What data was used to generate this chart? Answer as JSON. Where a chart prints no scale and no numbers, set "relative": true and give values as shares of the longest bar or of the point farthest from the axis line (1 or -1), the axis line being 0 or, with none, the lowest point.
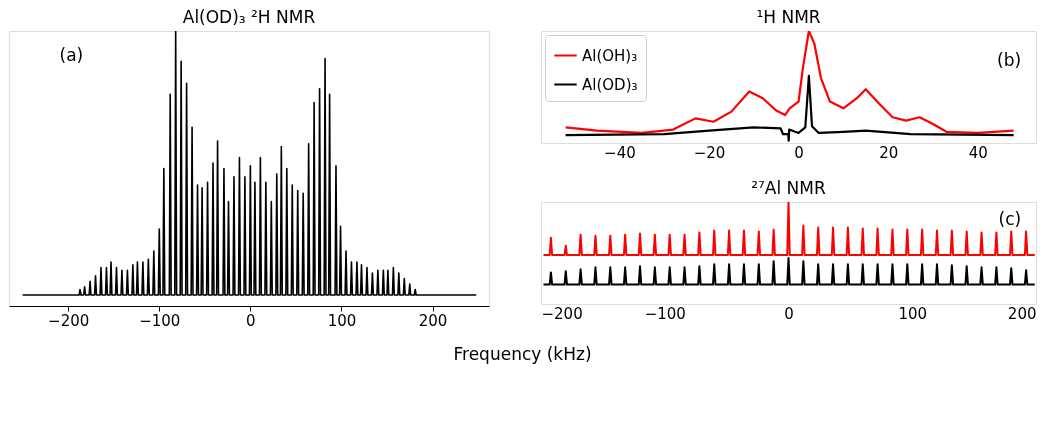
{
  "chart_data": [
    {
      "type": "line",
      "title": "Al(OD)₃ ²H NMR",
      "xlabel": "Frequency (kHz)",
      "relative": true,
      "tick_labels": "x",
      "grid": false,
      "xlim": [
        -265,
        262
      ],
      "xticks": [
        -200,
        -100,
        0,
        100,
        200
      ],
      "annotations": [
        "(a)"
      ],
      "series": [
        {
          "color": "#000000",
          "x": [
            -250,
            -188,
            -187,
            -186,
            -183,
            -182,
            -181,
            -177,
            -176,
            -175,
            -171,
            -170,
            -169,
            -165,
            -164,
            -163,
            -159,
            -158,
            -157,
            -154,
            -153,
            -152,
            -148,
            -147,
            -146,
            -142,
            -141,
            -140,
            -136,
            -135,
            -134,
            -130,
            -129,
            -128,
            -125,
            -124,
            -123,
            -119,
            -118,
            -117,
            -113,
            -112,
            -111,
            -107,
            -106,
            -105,
            -101,
            -100,
            -99,
            -96,
            -95,
            -94,
            -89,
            -88,
            -87,
            -83,
            -82,
            -81,
            -77,
            -76,
            -75,
            -71,
            -70,
            -69,
            -65,
            -64,
            -63,
            -59,
            -58,
            -57,
            -54,
            -53,
            -52,
            -48,
            -47,
            -46,
            -42,
            -41,
            -40,
            -37,
            -36,
            -35,
            -30,
            -29,
            -28,
            -25,
            -24,
            -23,
            -19,
            -18,
            -17,
            -13,
            -12,
            -11,
            -7,
            -6,
            -5,
            -1,
            0,
            1,
            4,
            5,
            6,
            10,
            11,
            12,
            16,
            17,
            18,
            22,
            23,
            24,
            28,
            29,
            30,
            33,
            34,
            35,
            39,
            40,
            41,
            45,
            46,
            47,
            51,
            52,
            53,
            57,
            58,
            59,
            63,
            64,
            65,
            69,
            70,
            71,
            75,
            76,
            77,
            81,
            82,
            83,
            86,
            87,
            88,
            93,
            94,
            95,
            98,
            99,
            100,
            104,
            105,
            106,
            110,
            111,
            112,
            116,
            117,
            118,
            121,
            122,
            123,
            127,
            128,
            129,
            133,
            134,
            135,
            139,
            140,
            141,
            145,
            146,
            147,
            150,
            151,
            152,
            156,
            157,
            158,
            162,
            163,
            164,
            168,
            169,
            170,
            174,
            175,
            176,
            180,
            181,
            182,
            248
          ],
          "values": [
            0.04,
            0.04,
            0.06,
            0.04,
            0.04,
            0.07,
            0.04,
            0.04,
            0.09,
            0.04,
            0.04,
            0.11,
            0.04,
            0.04,
            0.14,
            0.04,
            0.04,
            0.14,
            0.04,
            0.04,
            0.16,
            0.04,
            0.04,
            0.14,
            0.04,
            0.04,
            0.13,
            0.04,
            0.04,
            0.13,
            0.04,
            0.04,
            0.15,
            0.04,
            0.04,
            0.16,
            0.04,
            0.04,
            0.16,
            0.04,
            0.04,
            0.17,
            0.04,
            0.04,
            0.2,
            0.04,
            0.04,
            0.28,
            0.04,
            0.04,
            0.5,
            0.04,
            0.04,
            0.77,
            0.04,
            0.04,
            1,
            0.04,
            0.04,
            0.89,
            0.04,
            0.04,
            0.81,
            0.04,
            0.04,
            0.65,
            0.04,
            0.04,
            0.44,
            0.04,
            0.04,
            0.43,
            0.04,
            0.04,
            0.45,
            0.04,
            0.04,
            0.52,
            0.04,
            0.04,
            0.6,
            0.04,
            0.04,
            0.5,
            0.04,
            0.04,
            0.38,
            0.04,
            0.04,
            0.47,
            0.04,
            0.04,
            0.54,
            0.04,
            0.04,
            0.47,
            0.04,
            0.04,
            0.51,
            0.04,
            0.04,
            0.45,
            0.04,
            0.04,
            0.54,
            0.04,
            0.04,
            0.45,
            0.04,
            0.04,
            0.38,
            0.04,
            0.04,
            0.48,
            0.04,
            0.04,
            0.58,
            0.04,
            0.04,
            0.5,
            0.04,
            0.04,
            0.44,
            0.04,
            0.04,
            0.42,
            0.04,
            0.04,
            0.41,
            0.04,
            0.04,
            0.59,
            0.04,
            0.04,
            0.74,
            0.04,
            0.04,
            0.79,
            0.04,
            0.04,
            0.9,
            0.04,
            0.04,
            0.77,
            0.04,
            0.04,
            0.51,
            0.04,
            0.04,
            0.29,
            0.04,
            0.04,
            0.2,
            0.04,
            0.04,
            0.16,
            0.04,
            0.04,
            0.16,
            0.04,
            0.04,
            0.15,
            0.04,
            0.04,
            0.14,
            0.04,
            0.04,
            0.12,
            0.04,
            0.04,
            0.13,
            0.04,
            0.04,
            0.13,
            0.04,
            0.04,
            0.13,
            0.04,
            0.04,
            0.14,
            0.04,
            0.04,
            0.12,
            0.04,
            0.04,
            0.1,
            0.04,
            0.04,
            0.08,
            0.04,
            0.04,
            0.06,
            0.04,
            0.04
          ]
        }
      ]
    },
    {
      "type": "line",
      "title": "¹H NMR",
      "relative": true,
      "tick_labels": "x",
      "grid": false,
      "legend": "top left",
      "xlim": [
        -57.5,
        53
      ],
      "xticks": [
        -40,
        -20,
        0,
        20,
        40
      ],
      "annotations": [
        "(b)"
      ],
      "series": [
        {
          "name": "Al(OH)₃",
          "color": "#ff0000",
          "x": [
            -52,
            -45,
            -35,
            -28,
            -23,
            -19,
            -15,
            -11,
            -8,
            -5,
            -3,
            -2,
            0,
            1,
            2.3,
            3.5,
            5,
            7,
            10,
            13,
            15,
            18,
            21,
            24,
            27,
            30,
            33,
            40,
            48
          ],
          "values": [
            0.14,
            0.11,
            0.09,
            0.12,
            0.22,
            0.19,
            0.28,
            0.46,
            0.4,
            0.29,
            0.25,
            0.31,
            0.37,
            0.68,
            1,
            0.89,
            0.58,
            0.37,
            0.31,
            0.4,
            0.48,
            0.35,
            0.23,
            0.2,
            0.23,
            0.17,
            0.1,
            0.09,
            0.11
          ]
        },
        {
          "name": "Al(OD)₃",
          "color": "#000000",
          "x": [
            -52,
            -30,
            -20,
            -10,
            -4,
            -3.5,
            -2.3,
            -2.2,
            -2.1,
            0,
            1.5,
            2.3,
            3,
            4.5,
            10,
            15,
            25,
            48
          ],
          "values": [
            0.07,
            0.08,
            0.11,
            0.14,
            0.13,
            0.08,
            0.08,
            0.02,
            0.12,
            0.09,
            0.14,
            0.6,
            0.15,
            0.09,
            0.1,
            0.11,
            0.08,
            0.07
          ]
        }
      ]
    },
    {
      "type": "line",
      "title": "²⁷Al NMR",
      "relative": true,
      "tick_labels": "x",
      "grid": false,
      "xlim": [
        -200,
        200
      ],
      "xticks": [
        -200,
        -100,
        0,
        100,
        200
      ],
      "annotations": [
        "(c)"
      ],
      "x": [
        -198,
        -193,
        -192,
        -191,
        -181,
        -180,
        -179,
        -169,
        -168,
        -167,
        -157,
        -156,
        -155,
        -145,
        -144,
        -143,
        -133,
        -132,
        -131,
        -121,
        -120,
        -119,
        -109,
        -108,
        -107,
        -97,
        -96,
        -95,
        -85,
        -84,
        -83,
        -73,
        -72,
        -71,
        -61,
        -60,
        -59,
        -49,
        -48,
        -47,
        -37,
        -36,
        -35,
        -25,
        -24,
        -23,
        -13,
        -12,
        -11,
        -1,
        0,
        1,
        11,
        12,
        13,
        23,
        24,
        25,
        35,
        36,
        37,
        47,
        48,
        49,
        59,
        60,
        61,
        71,
        72,
        73,
        83,
        84,
        85,
        95,
        96,
        97,
        107,
        108,
        109,
        119,
        120,
        121,
        131,
        132,
        133,
        143,
        144,
        145,
        155,
        156,
        157,
        167,
        168,
        169,
        179,
        180,
        181,
        191,
        192,
        193,
        199
      ],
      "series": [
        {
          "color": "#ff0000",
          "values": [
            0.48,
            0.48,
            0.65,
            0.48,
            0.48,
            0.57,
            0.48,
            0.48,
            0.68,
            0.48,
            0.48,
            0.67,
            0.48,
            0.48,
            0.67,
            0.48,
            0.48,
            0.68,
            0.48,
            0.48,
            0.69,
            0.48,
            0.48,
            0.68,
            0.48,
            0.48,
            0.68,
            0.48,
            0.48,
            0.68,
            0.48,
            0.48,
            0.7,
            0.48,
            0.48,
            0.72,
            0.48,
            0.48,
            0.72,
            0.48,
            0.48,
            0.72,
            0.48,
            0.48,
            0.71,
            0.48,
            0.48,
            0.73,
            0.48,
            0.48,
            1,
            0.48,
            0.48,
            0.77,
            0.48,
            0.48,
            0.75,
            0.48,
            0.48,
            0.75,
            0.48,
            0.48,
            0.75,
            0.48,
            0.48,
            0.74,
            0.48,
            0.48,
            0.74,
            0.48,
            0.48,
            0.73,
            0.48,
            0.48,
            0.73,
            0.48,
            0.48,
            0.73,
            0.48,
            0.48,
            0.72,
            0.48,
            0.48,
            0.72,
            0.48,
            0.48,
            0.71,
            0.48,
            0.48,
            0.7,
            0.48,
            0.48,
            0.7,
            0.48,
            0.48,
            0.71,
            0.48,
            0.48,
            0.71,
            0.48,
            0.48
          ]
        },
        {
          "color": "#000000",
          "values": [
            0.19,
            0.19,
            0.31,
            0.19,
            0.19,
            0.32,
            0.19,
            0.19,
            0.34,
            0.19,
            0.19,
            0.36,
            0.19,
            0.19,
            0.36,
            0.19,
            0.19,
            0.36,
            0.19,
            0.19,
            0.37,
            0.19,
            0.19,
            0.36,
            0.19,
            0.19,
            0.36,
            0.19,
            0.19,
            0.36,
            0.19,
            0.19,
            0.37,
            0.19,
            0.19,
            0.39,
            0.19,
            0.19,
            0.39,
            0.19,
            0.19,
            0.39,
            0.19,
            0.19,
            0.39,
            0.19,
            0.19,
            0.42,
            0.19,
            0.19,
            0.45,
            0.19,
            0.19,
            0.42,
            0.19,
            0.19,
            0.39,
            0.19,
            0.19,
            0.39,
            0.19,
            0.19,
            0.39,
            0.19,
            0.19,
            0.39,
            0.19,
            0.19,
            0.39,
            0.19,
            0.19,
            0.39,
            0.19,
            0.19,
            0.39,
            0.19,
            0.19,
            0.39,
            0.19,
            0.19,
            0.39,
            0.19,
            0.19,
            0.38,
            0.19,
            0.19,
            0.37,
            0.19,
            0.19,
            0.36,
            0.19,
            0.19,
            0.36,
            0.19,
            0.19,
            0.35,
            0.19,
            0.19,
            0.33,
            0.19,
            0.19
          ]
        }
      ]
    }
  ]
}
